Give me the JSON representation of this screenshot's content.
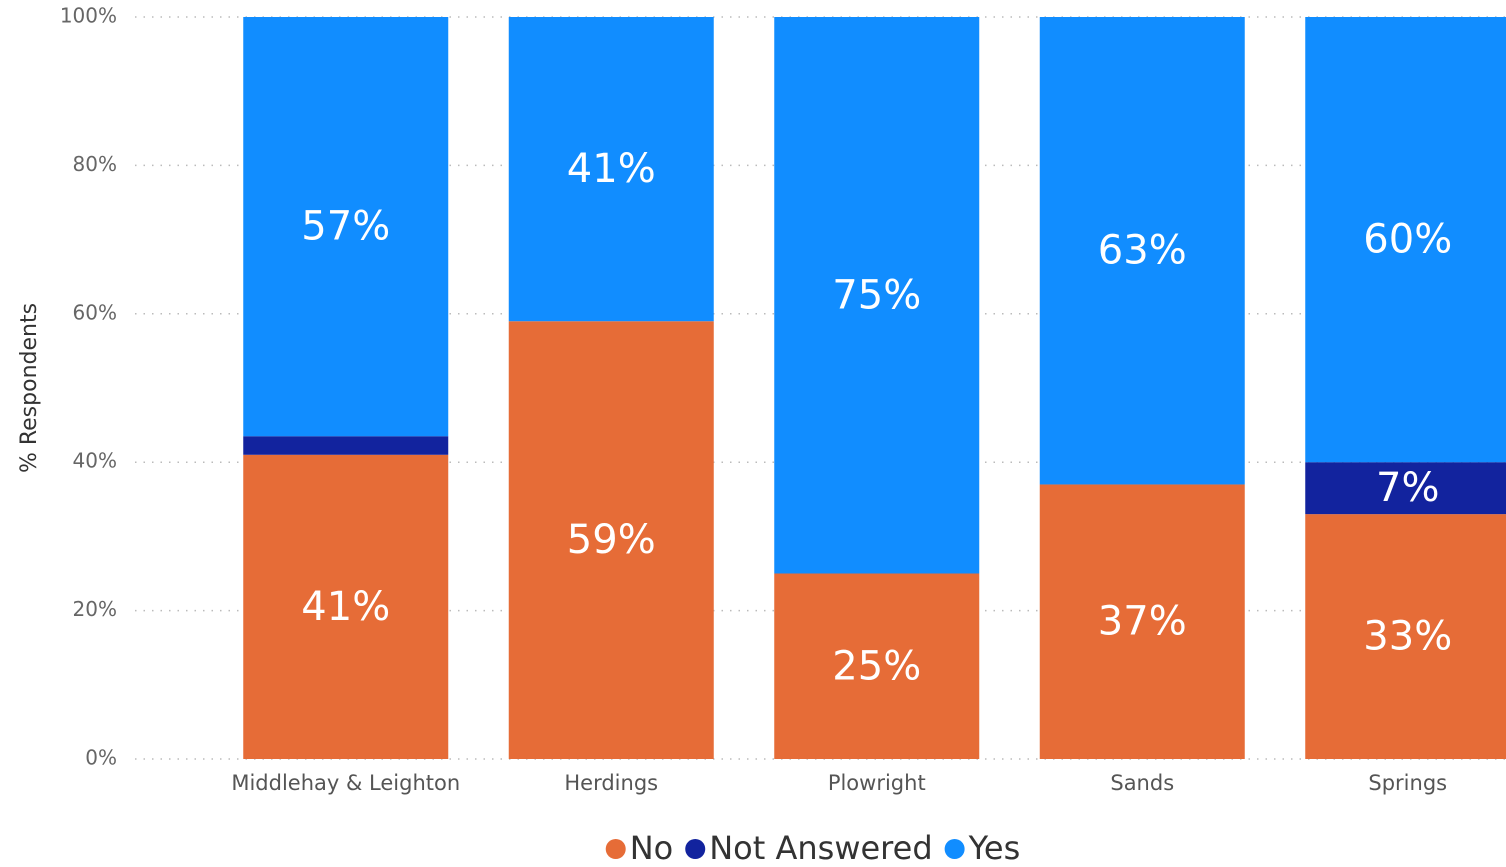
{
  "chart_data": {
    "type": "stacked_bar",
    "y_label": "% Respondents",
    "categories": [
      "Middlehay & Leighton",
      "Herdings",
      "Plowright",
      "Sands",
      "Springs"
    ],
    "series": [
      {
        "name": "No",
        "color": "#E66C37",
        "values": [
          41,
          59,
          25,
          37,
          33
        ],
        "value_labels": [
          "41%",
          "59%",
          "25%",
          "37%",
          "33%"
        ]
      },
      {
        "name": "Not Answered",
        "color": "#12239E",
        "values": [
          2.5,
          0,
          0,
          0,
          7
        ],
        "value_labels": [
          null,
          null,
          null,
          null,
          "7%"
        ]
      },
      {
        "name": "Yes",
        "color": "#118DFF",
        "values": [
          57,
          41,
          75,
          63,
          60
        ],
        "value_labels": [
          "57%",
          "41%",
          "75%",
          "63%",
          "60%"
        ]
      }
    ],
    "ylim": [
      0,
      100
    ],
    "yticks": [
      {
        "value": 0,
        "label": "0%"
      },
      {
        "value": 20,
        "label": "20%"
      },
      {
        "value": 40,
        "label": "40%"
      },
      {
        "value": 60,
        "label": "60%"
      },
      {
        "value": 80,
        "label": "80%"
      },
      {
        "value": 100,
        "label": "100%"
      }
    ],
    "grid": true,
    "legend": "bottom"
  }
}
